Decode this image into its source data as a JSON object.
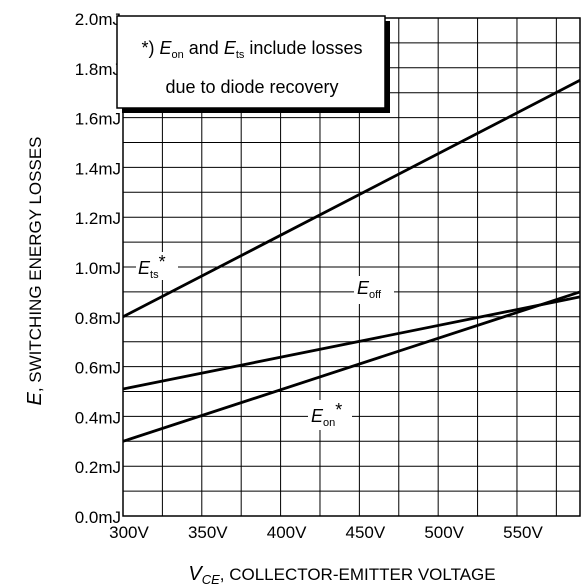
{
  "chart_data": {
    "type": "line",
    "title": "",
    "xlabel": {
      "symbol": "V",
      "sub": "CE",
      "text": ", COLLECTOR-EMITTER VOLTAGE"
    },
    "ylabel": {
      "symbol": "E",
      "text": ", SWITCHING ENERGY LOSSES"
    },
    "xlim": [
      300,
      590
    ],
    "ylim": [
      0.0,
      2.0
    ],
    "x_ticks": [
      300,
      350,
      400,
      450,
      500,
      550
    ],
    "x_tick_labels": [
      "300V",
      "350V",
      "400V",
      "450V",
      "500V",
      "550V"
    ],
    "y_ticks": [
      0.0,
      0.2,
      0.4,
      0.6,
      0.8,
      1.0,
      1.2,
      1.4,
      1.6,
      1.8,
      2.0
    ],
    "y_tick_labels": [
      "0.0mJ",
      "0.2mJ",
      "0.4mJ",
      "0.6mJ",
      "0.8mJ",
      "1.0mJ",
      "1.2mJ",
      "1.4mJ",
      "1.6mJ",
      "1.8mJ",
      "2.0mJ"
    ],
    "grid": true,
    "series": [
      {
        "name": {
          "sym": "E",
          "sub": "ts",
          "suffix": "*"
        },
        "x": [
          300,
          590
        ],
        "y": [
          0.8,
          1.75
        ]
      },
      {
        "name": {
          "sym": "E",
          "sub": "off",
          "suffix": ""
        },
        "x": [
          300,
          590
        ],
        "y": [
          0.51,
          0.88
        ]
      },
      {
        "name": {
          "sym": "E",
          "sub": "on",
          "suffix": "*"
        },
        "x": [
          300,
          590
        ],
        "y": [
          0.3,
          0.9
        ]
      }
    ],
    "annotation": {
      "line1": {
        "prefix": "*) ",
        "sym1": "E",
        "sub1": "on",
        "mid": " and ",
        "sym2": "E",
        "sub2": "ts",
        "suffix": " include losses"
      },
      "line2": "due to diode recovery"
    }
  }
}
